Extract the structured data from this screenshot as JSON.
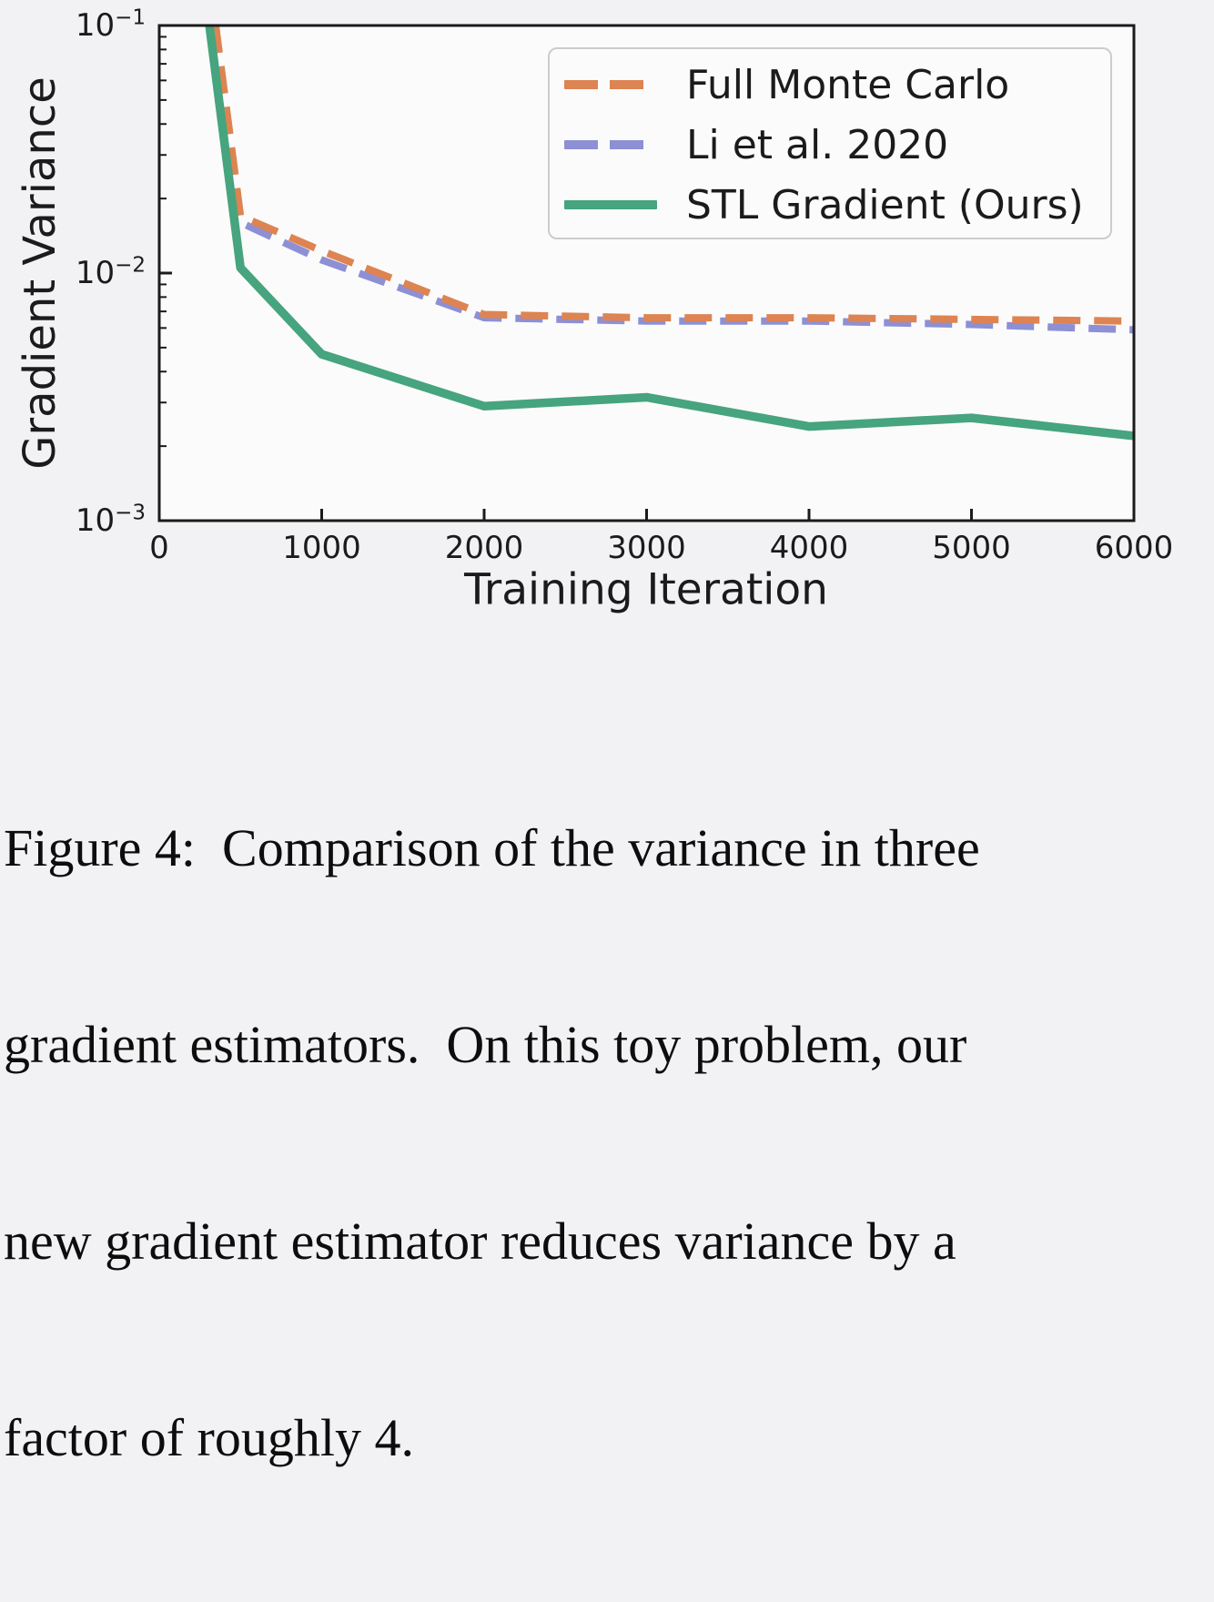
{
  "chart": {
    "ylabel": "Gradient Variance",
    "xlabel": "Training Iteration",
    "x_tick_labels": [
      "0",
      "1000",
      "2000",
      "3000",
      "4000",
      "5000",
      "6000"
    ],
    "y_tick_labels": [
      {
        "mantissa": "10",
        "exponent": "−1"
      },
      {
        "mantissa": "10",
        "exponent": "−2"
      },
      {
        "mantissa": "10",
        "exponent": "−3"
      }
    ],
    "legend": [
      {
        "label": "Full Monte Carlo",
        "color": "#dd8452",
        "style": "dashed"
      },
      {
        "label": "Li et al. 2020",
        "color": "#8d90d4",
        "style": "dashed"
      },
      {
        "label": "STL Gradient (Ours)",
        "color": "#46a47e",
        "style": "solid"
      }
    ],
    "spine_color": "#1b1b1b"
  },
  "chart_data": {
    "type": "line",
    "title": "",
    "xlabel": "Training Iteration",
    "ylabel": "Gradient Variance",
    "xlim": [
      0,
      6000
    ],
    "ylim": [
      0.001,
      0.1
    ],
    "yscale": "log",
    "x_ticks": [
      0,
      1000,
      2000,
      3000,
      4000,
      5000,
      6000
    ],
    "grid": false,
    "legend_position": "upper right",
    "x": [
      250,
      500,
      1000,
      2000,
      3000,
      4000,
      5000,
      6000
    ],
    "series": [
      {
        "name": "Full Monte Carlo",
        "color": "#dd8452",
        "dash": true,
        "values": [
          0.31,
          0.017,
          0.0123,
          0.0068,
          0.0066,
          0.0066,
          0.0065,
          0.0064
        ]
      },
      {
        "name": "Li et al. 2020",
        "color": "#8d90d4",
        "dash": true,
        "values": [
          0.31,
          0.016,
          0.0113,
          0.0066,
          0.0064,
          0.0064,
          0.0062,
          0.0059
        ]
      },
      {
        "name": "STL Gradient (Ours)",
        "color": "#46a47e",
        "dash": false,
        "values": [
          0.2,
          0.0105,
          0.0047,
          0.0029,
          0.00315,
          0.0024,
          0.0026,
          0.0022
        ]
      }
    ]
  },
  "caption": {
    "lines": [
      "Figure 4:  Comparison of the variance in three",
      "gradient estimators.  On this toy problem, our",
      "new gradient estimator reduces variance by a",
      "factor of roughly 4."
    ]
  }
}
